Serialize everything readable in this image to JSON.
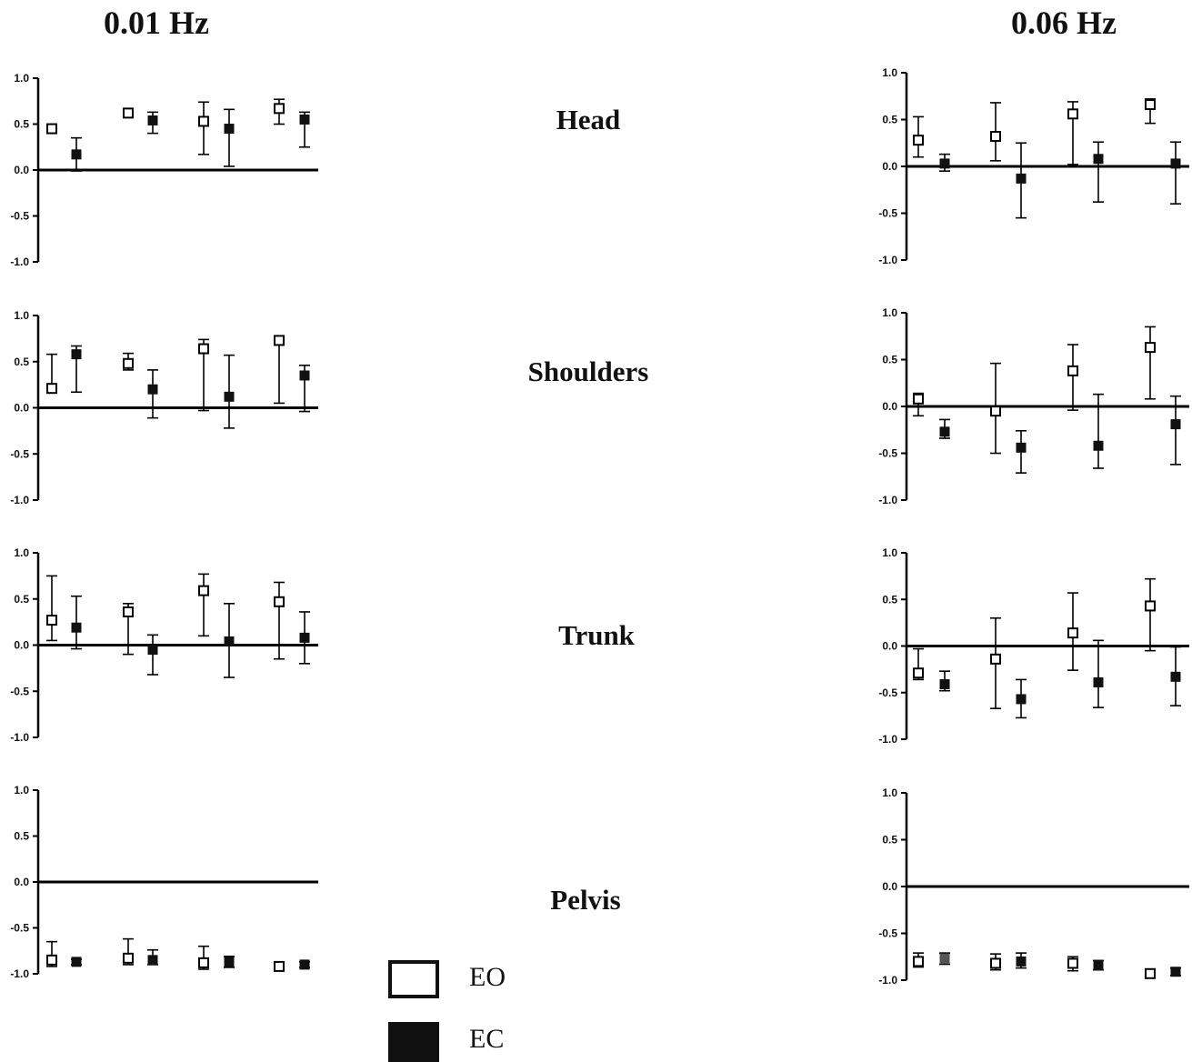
{
  "titles": {
    "left": "0.01 Hz",
    "right": "0.06 Hz"
  },
  "row_labels": [
    "Head",
    "Shoulders",
    "Trunk",
    "Pelvis"
  ],
  "legend": {
    "eo": "EO",
    "ec": "EC"
  },
  "colors": {
    "axis": "#000000",
    "eo_fill": "#ffffff",
    "ec_fill": "#111111",
    "ec_gray_fill": "#555555"
  },
  "chart_data": [
    {
      "type": "scatter",
      "panel": "0.01 Hz - Head",
      "ylim": [
        -1.0,
        1.0
      ],
      "yticks": [
        "1.0",
        "0.5",
        "0.0",
        "-0.5",
        "-1.0"
      ],
      "series": [
        {
          "name": "EO",
          "points": [
            {
              "y": 0.45,
              "lo": 0.45,
              "hi": 0.45
            },
            {
              "y": 0.62,
              "lo": 0.62,
              "hi": 0.62
            },
            {
              "y": 0.53,
              "lo": 0.17,
              "hi": 0.74
            },
            {
              "y": 0.67,
              "lo": 0.5,
              "hi": 0.77
            }
          ]
        },
        {
          "name": "EC",
          "points": [
            {
              "y": 0.17,
              "lo": -0.01,
              "hi": 0.35
            },
            {
              "y": 0.54,
              "lo": 0.4,
              "hi": 0.63
            },
            {
              "y": 0.45,
              "lo": 0.04,
              "hi": 0.66
            },
            {
              "y": 0.55,
              "lo": 0.25,
              "hi": 0.63
            }
          ]
        }
      ]
    },
    {
      "type": "scatter",
      "panel": "0.06 Hz - Head",
      "ylim": [
        -1.0,
        1.0
      ],
      "yticks": [
        "1.0",
        "0.5",
        "0.0",
        "-0.5",
        "-1.0"
      ],
      "series": [
        {
          "name": "EO",
          "points": [
            {
              "y": 0.28,
              "lo": 0.1,
              "hi": 0.53
            },
            {
              "y": 0.32,
              "lo": 0.06,
              "hi": 0.68
            },
            {
              "y": 0.56,
              "lo": 0.02,
              "hi": 0.69
            },
            {
              "y": 0.66,
              "lo": 0.46,
              "hi": 0.72
            }
          ]
        },
        {
          "name": "EC",
          "points": [
            {
              "y": 0.03,
              "lo": -0.05,
              "hi": 0.13
            },
            {
              "y": -0.13,
              "lo": -0.55,
              "hi": 0.25
            },
            {
              "y": 0.08,
              "lo": -0.38,
              "hi": 0.26
            },
            {
              "y": 0.03,
              "lo": -0.4,
              "hi": 0.26
            }
          ]
        }
      ]
    },
    {
      "type": "scatter",
      "panel": "0.01 Hz - Shoulders",
      "ylim": [
        -1.0,
        1.0
      ],
      "yticks": [
        "1.0",
        "0.5",
        "0.0",
        "-0.5",
        "-1.0"
      ],
      "series": [
        {
          "name": "EO",
          "points": [
            {
              "y": 0.21,
              "lo": 0.21,
              "hi": 0.58
            },
            {
              "y": 0.48,
              "lo": 0.41,
              "hi": 0.59
            },
            {
              "y": 0.64,
              "lo": -0.03,
              "hi": 0.74
            },
            {
              "y": 0.73,
              "lo": 0.05,
              "hi": 0.78
            }
          ]
        },
        {
          "name": "EC",
          "points": [
            {
              "y": 0.58,
              "lo": 0.17,
              "hi": 0.67
            },
            {
              "y": 0.2,
              "lo": -0.11,
              "hi": 0.41
            },
            {
              "y": 0.12,
              "lo": -0.22,
              "hi": 0.57
            },
            {
              "y": 0.35,
              "lo": -0.04,
              "hi": 0.46
            }
          ]
        }
      ]
    },
    {
      "type": "scatter",
      "panel": "0.06 Hz - Shoulders",
      "ylim": [
        -1.0,
        1.0
      ],
      "yticks": [
        "1.0",
        "0.5",
        "0.0",
        "-0.5",
        "-1.0"
      ],
      "series": [
        {
          "name": "EO",
          "points": [
            {
              "y": 0.08,
              "lo": -0.1,
              "hi": 0.14
            },
            {
              "y": -0.05,
              "lo": -0.5,
              "hi": 0.46
            },
            {
              "y": 0.38,
              "lo": -0.04,
              "hi": 0.66
            },
            {
              "y": 0.63,
              "lo": 0.08,
              "hi": 0.85
            }
          ]
        },
        {
          "name": "EC",
          "points": [
            {
              "y": -0.27,
              "lo": -0.34,
              "hi": -0.14
            },
            {
              "y": -0.44,
              "lo": -0.71,
              "hi": -0.26
            },
            {
              "y": -0.42,
              "lo": -0.66,
              "hi": 0.13
            },
            {
              "y": -0.19,
              "lo": -0.62,
              "hi": 0.11
            }
          ]
        }
      ]
    },
    {
      "type": "scatter",
      "panel": "0.01 Hz - Trunk",
      "ylim": [
        -1.0,
        1.0
      ],
      "yticks": [
        "1.0",
        "0.5",
        "0.0",
        "-0.5",
        "-1.0"
      ],
      "series": [
        {
          "name": "EO",
          "points": [
            {
              "y": 0.27,
              "lo": 0.05,
              "hi": 0.75
            },
            {
              "y": 0.36,
              "lo": -0.1,
              "hi": 0.45
            },
            {
              "y": 0.59,
              "lo": 0.1,
              "hi": 0.77
            },
            {
              "y": 0.47,
              "lo": -0.15,
              "hi": 0.68
            }
          ]
        },
        {
          "name": "EC",
          "points": [
            {
              "y": 0.19,
              "lo": -0.04,
              "hi": 0.53
            },
            {
              "y": -0.05,
              "lo": -0.32,
              "hi": 0.11
            },
            {
              "y": 0.04,
              "lo": -0.35,
              "hi": 0.45
            },
            {
              "y": 0.08,
              "lo": -0.2,
              "hi": 0.36
            }
          ]
        }
      ]
    },
    {
      "type": "scatter",
      "panel": "0.06 Hz - Trunk",
      "ylim": [
        -1.0,
        1.0
      ],
      "yticks": [
        "1.0",
        "0.5",
        "0.0",
        "-0.5",
        "-1.0"
      ],
      "series": [
        {
          "name": "EO",
          "points": [
            {
              "y": -0.29,
              "lo": -0.36,
              "hi": -0.03
            },
            {
              "y": -0.14,
              "lo": -0.67,
              "hi": 0.3
            },
            {
              "y": 0.14,
              "lo": -0.26,
              "hi": 0.57
            },
            {
              "y": 0.43,
              "lo": -0.05,
              "hi": 0.72
            }
          ]
        },
        {
          "name": "EC",
          "points": [
            {
              "y": -0.41,
              "lo": -0.48,
              "hi": -0.27
            },
            {
              "y": -0.57,
              "lo": -0.77,
              "hi": -0.36
            },
            {
              "y": -0.39,
              "lo": -0.66,
              "hi": 0.06
            },
            {
              "y": -0.33,
              "lo": -0.64,
              "hi": -0.01
            }
          ]
        }
      ]
    },
    {
      "type": "scatter",
      "panel": "0.01 Hz - Pelvis",
      "ylim": [
        -1.0,
        1.0
      ],
      "yticks": [
        "1.0",
        "0.5",
        "0.0",
        "-0.5",
        "-1.0"
      ],
      "series": [
        {
          "name": "EO",
          "points": [
            {
              "y": -0.85,
              "lo": -0.92,
              "hi": -0.65
            },
            {
              "y": -0.83,
              "lo": -0.9,
              "hi": -0.62
            },
            {
              "y": -0.88,
              "lo": -0.95,
              "hi": -0.7
            },
            {
              "y": -0.92,
              "lo": -0.94,
              "hi": -0.89
            }
          ]
        },
        {
          "name": "EC",
          "points": [
            {
              "y": -0.87,
              "lo": -0.9,
              "hi": -0.84
            },
            {
              "y": -0.85,
              "lo": -0.9,
              "hi": -0.74
            },
            {
              "y": -0.87,
              "lo": -0.93,
              "hi": -0.81
            },
            {
              "y": -0.9,
              "lo": -0.93,
              "hi": -0.87
            }
          ]
        }
      ]
    },
    {
      "type": "scatter",
      "panel": "0.06 Hz - Pelvis",
      "ylim": [
        -1.0,
        1.0
      ],
      "yticks": [
        "1.0",
        "0.5",
        "0.0",
        "-0.5",
        "-1.0"
      ],
      "series": [
        {
          "name": "EO",
          "points": [
            {
              "y": -0.8,
              "lo": -0.86,
              "hi": -0.71
            },
            {
              "y": -0.82,
              "lo": -0.89,
              "hi": -0.72
            },
            {
              "y": -0.82,
              "lo": -0.9,
              "hi": -0.75
            },
            {
              "y": -0.93,
              "lo": -0.96,
              "hi": -0.89
            }
          ]
        },
        {
          "name": "EC",
          "points": [
            {
              "y": -0.77,
              "lo": -0.83,
              "hi": -0.71
            },
            {
              "y": -0.8,
              "lo": -0.87,
              "hi": -0.71
            },
            {
              "y": -0.84,
              "lo": -0.89,
              "hi": -0.79
            },
            {
              "y": -0.91,
              "lo": -0.95,
              "hi": -0.87
            }
          ]
        }
      ]
    }
  ]
}
